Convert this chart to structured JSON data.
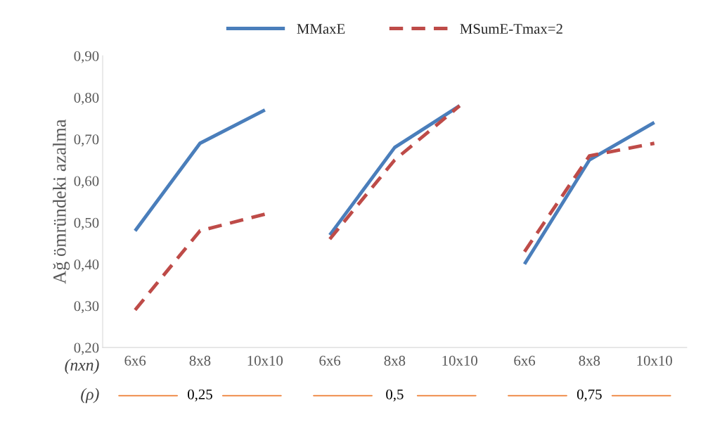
{
  "chart_data": {
    "type": "line",
    "ylabel": "Ağ ömründeki azalma",
    "categories": [
      "6x6",
      "8x8",
      "10x10",
      "6x6",
      "8x8",
      "10x10",
      "6x6",
      "8x8",
      "10x10"
    ],
    "series": [
      {
        "name": "MMaxE",
        "color": "#4a7ebb",
        "line_style": "solid",
        "values": [
          0.48,
          0.69,
          0.77,
          null,
          null,
          null,
          null,
          null,
          null
        ]
      },
      {
        "name": "MSumE-Tmax=2",
        "color": "#be4b48",
        "line_style": "dashed",
        "values": [
          0.29,
          0.48,
          0.52,
          null,
          null,
          null,
          null,
          null,
          null
        ]
      },
      {
        "color": "#4a7ebb",
        "line_style": "solid",
        "values": [
          null,
          null,
          null,
          0.47,
          0.68,
          0.78,
          null,
          null,
          null
        ]
      },
      {
        "color": "#be4b48",
        "line_style": "dashed",
        "values": [
          null,
          null,
          null,
          0.46,
          0.65,
          0.78,
          null,
          null,
          null
        ]
      },
      {
        "color": "#4a7ebb",
        "line_style": "solid",
        "values": [
          null,
          null,
          null,
          null,
          null,
          null,
          0.4,
          0.65,
          0.74
        ]
      },
      {
        "color": "#be4b48",
        "line_style": "dashed",
        "values": [
          null,
          null,
          null,
          null,
          null,
          null,
          0.43,
          0.66,
          0.69
        ]
      }
    ],
    "ylim": [
      0.2,
      0.9
    ],
    "yticks": [
      {
        "value": 0.2,
        "label": "0,20"
      },
      {
        "value": 0.3,
        "label": "0,30"
      },
      {
        "value": 0.4,
        "label": "0,40"
      },
      {
        "value": 0.5,
        "label": "0,50"
      },
      {
        "value": 0.6,
        "label": "0,60"
      },
      {
        "value": 0.7,
        "label": "0,70"
      },
      {
        "value": 0.8,
        "label": "0,80"
      },
      {
        "value": 0.9,
        "label": "0,90"
      }
    ],
    "annotations": [
      "(nxn)",
      "(ρ)",
      "0,25",
      "0,5",
      "0,75"
    ],
    "grid": false,
    "legend": "top",
    "marker": "none"
  }
}
